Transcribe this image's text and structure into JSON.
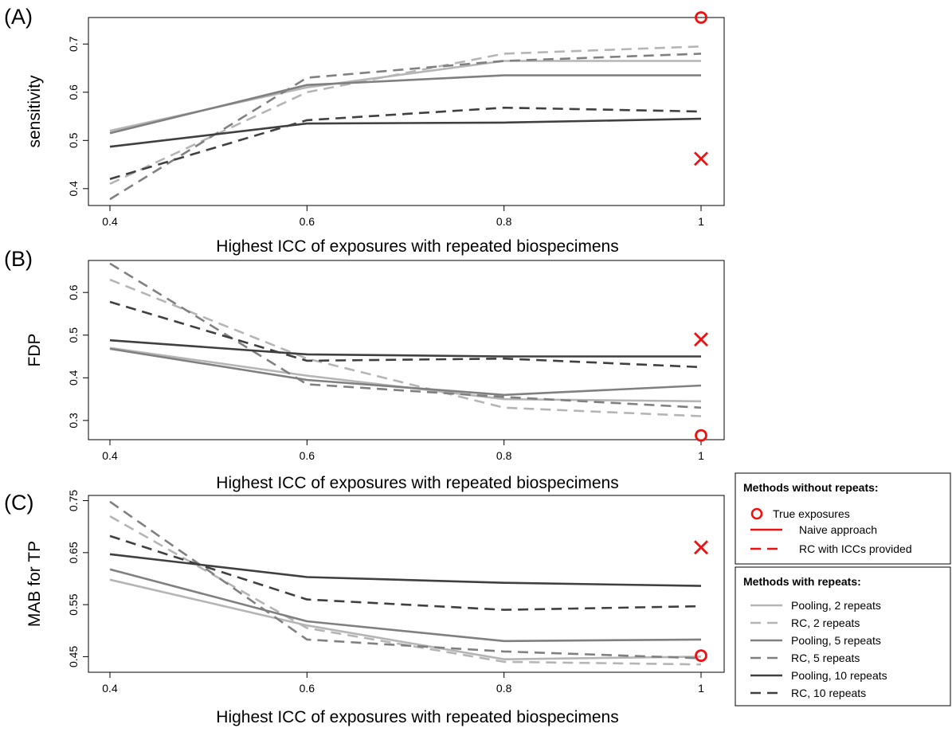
{
  "chart_data": [
    {
      "type": "line",
      "panel_label": "(A)",
      "xlabel": "Highest ICC of exposures with repeated biospecimens",
      "ylabel": "sensitivity",
      "x": [
        0.4,
        0.6,
        0.8,
        1
      ],
      "x_tick_labels": [
        "0.4",
        "0.6",
        "0.8",
        "1"
      ],
      "xlim": [
        0.4,
        1
      ],
      "ylim": [
        0.365,
        0.755
      ],
      "yticks": [
        0.4,
        0.5,
        0.6,
        0.7
      ],
      "y_tick_labels": [
        "0.4",
        "0.5",
        "0.6",
        "0.7"
      ],
      "series": [
        {
          "name": "Pooling, 2 repeats",
          "values": [
            0.52,
            0.61,
            0.665,
            0.665
          ]
        },
        {
          "name": "RC, 2 repeats",
          "values": [
            0.41,
            0.6,
            0.68,
            0.695
          ]
        },
        {
          "name": "Pooling, 5 repeats",
          "values": [
            0.515,
            0.615,
            0.635,
            0.635
          ]
        },
        {
          "name": "RC, 5 repeats",
          "values": [
            0.378,
            0.63,
            0.665,
            0.68
          ]
        },
        {
          "name": "Pooling, 10 repeats",
          "values": [
            0.487,
            0.535,
            0.537,
            0.545
          ]
        },
        {
          "name": "RC, 10 repeats",
          "values": [
            0.42,
            0.542,
            0.568,
            0.56
          ]
        }
      ],
      "reference_points": [
        {
          "name": "True exposures",
          "x": 1,
          "y": 0.755
        },
        {
          "name": "Naive approach",
          "x": 1,
          "y": 0.462
        }
      ]
    },
    {
      "type": "line",
      "panel_label": "(B)",
      "xlabel": "Highest ICC of exposures with repeated biospecimens",
      "ylabel": "FDP",
      "x": [
        0.4,
        0.6,
        0.8,
        1
      ],
      "x_tick_labels": [
        "0.4",
        "0.6",
        "0.8",
        "1"
      ],
      "xlim": [
        0.4,
        1
      ],
      "ylim": [
        0.255,
        0.675
      ],
      "yticks": [
        0.3,
        0.4,
        0.5,
        0.6
      ],
      "y_tick_labels": [
        "0.3",
        "0.4",
        "0.5",
        "0.6"
      ],
      "series": [
        {
          "name": "Pooling, 2 repeats",
          "values": [
            0.47,
            0.405,
            0.35,
            0.345
          ]
        },
        {
          "name": "RC, 2 repeats",
          "values": [
            0.63,
            0.445,
            0.33,
            0.31
          ]
        },
        {
          "name": "Pooling, 5 repeats",
          "values": [
            0.468,
            0.395,
            0.36,
            0.382
          ]
        },
        {
          "name": "RC, 5 repeats",
          "values": [
            0.668,
            0.385,
            0.355,
            0.33
          ]
        },
        {
          "name": "Pooling, 10 repeats",
          "values": [
            0.488,
            0.455,
            0.45,
            0.45
          ]
        },
        {
          "name": "RC, 10 repeats",
          "values": [
            0.578,
            0.44,
            0.445,
            0.425
          ]
        }
      ],
      "reference_points": [
        {
          "name": "True exposures",
          "x": 1,
          "y": 0.265
        },
        {
          "name": "Naive approach",
          "x": 1,
          "y": 0.49
        }
      ]
    },
    {
      "type": "line",
      "panel_label": "(C)",
      "xlabel": "Highest ICC of exposures with repeated biospecimens",
      "ylabel": "MAB for TP",
      "x": [
        0.4,
        0.6,
        0.8,
        1
      ],
      "x_tick_labels": [
        "0.4",
        "0.6",
        "0.8",
        "1"
      ],
      "xlim": [
        0.4,
        1
      ],
      "ylim": [
        0.42,
        0.76
      ],
      "yticks": [
        0.45,
        0.55,
        0.65,
        0.75
      ],
      "y_tick_labels": [
        "0.45",
        "0.55",
        "0.65",
        "0.75"
      ],
      "series": [
        {
          "name": "Pooling, 2 repeats",
          "values": [
            0.598,
            0.51,
            0.445,
            0.45
          ]
        },
        {
          "name": "RC, 2 repeats",
          "values": [
            0.72,
            0.505,
            0.44,
            0.435
          ]
        },
        {
          "name": "Pooling, 5 repeats",
          "values": [
            0.618,
            0.518,
            0.48,
            0.483
          ]
        },
        {
          "name": "RC, 5 repeats",
          "values": [
            0.748,
            0.483,
            0.46,
            0.447
          ]
        },
        {
          "name": "Pooling, 10 repeats",
          "values": [
            0.647,
            0.603,
            0.592,
            0.586
          ]
        },
        {
          "name": "RC, 10 repeats",
          "values": [
            0.682,
            0.56,
            0.54,
            0.547
          ]
        }
      ],
      "reference_points": [
        {
          "name": "True exposures",
          "x": 1,
          "y": 0.452
        },
        {
          "name": "Naive approach",
          "x": 1,
          "y": 0.66
        }
      ]
    }
  ],
  "legend_without": {
    "title": "Methods without repeats:",
    "entries": [
      {
        "label": "True exposures",
        "kind": "circle",
        "color": "#ee1111"
      },
      {
        "label": "Naive approach",
        "kind": "solid",
        "color": "#ee1111"
      },
      {
        "label": "RC with ICCs provided",
        "kind": "dashed",
        "color": "#ee1111"
      }
    ]
  },
  "legend_with": {
    "title": "Methods with repeats:",
    "entries": [
      {
        "label": "Pooling, 2 repeats",
        "kind": "solid",
        "color": "#b5b5b5"
      },
      {
        "label": "RC, 2 repeats",
        "kind": "dashed",
        "color": "#b5b5b5"
      },
      {
        "label": "Pooling, 5 repeats",
        "kind": "solid",
        "color": "#808080"
      },
      {
        "label": "RC, 5 repeats",
        "kind": "dashed",
        "color": "#808080"
      },
      {
        "label": "Pooling, 10 repeats",
        "kind": "solid",
        "color": "#404040"
      },
      {
        "label": "RC, 10 repeats",
        "kind": "dashed",
        "color": "#404040"
      }
    ]
  },
  "colors": {
    "pooling_2": "#b5b5b5",
    "rc_2": "#b5b5b5",
    "pooling_5": "#808080",
    "rc_5": "#808080",
    "pooling_10": "#404040",
    "rc_10": "#404040",
    "reference": "#ee1111"
  }
}
